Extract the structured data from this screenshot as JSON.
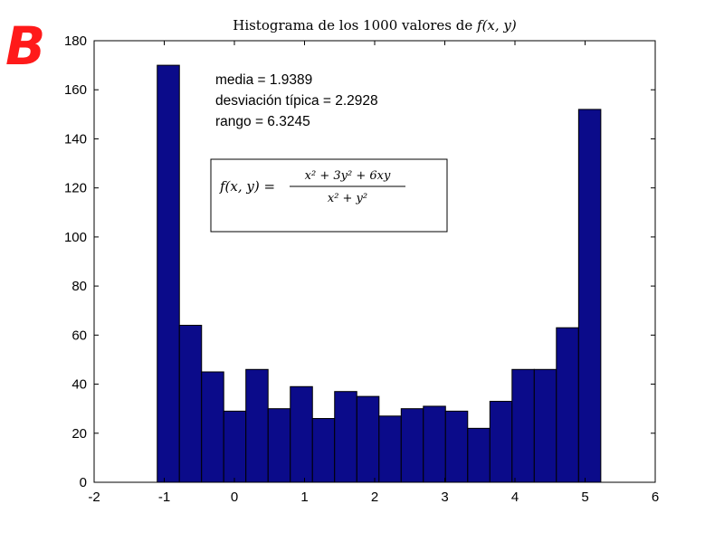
{
  "panel_label": "B",
  "stats": {
    "line1": "media = 1.9389",
    "line2": "desviación  típica = 2.2928",
    "line3": "rango = 6.3245"
  },
  "formula": {
    "lhs": "f(x, y) =",
    "numerator": "x² + 3y² + 6xy",
    "denominator": "x² + y²"
  },
  "colors": {
    "bar_fill": "#0b0b8a",
    "panel_label": "#ff1a1a"
  },
  "chart_data": {
    "type": "bar",
    "title": "Histograma de los 1000 valores de f(x, y)",
    "title_prefix": "Histograma de los 1000 valores de ",
    "title_math": "f(x, y)",
    "xlabel": "",
    "ylabel": "",
    "xlim": [
      -2,
      6
    ],
    "ylim": [
      0,
      180
    ],
    "xticks": [
      -2,
      -1,
      0,
      1,
      2,
      3,
      4,
      5,
      6
    ],
    "yticks": [
      0,
      20,
      40,
      60,
      80,
      100,
      120,
      140,
      160,
      180
    ],
    "grid": false,
    "bin_range": [
      -1.1,
      5.2245
    ],
    "bin_width": 0.3162,
    "bin_centers": [
      -0.942,
      -0.626,
      -0.31,
      0.006,
      0.322,
      0.639,
      0.955,
      1.271,
      1.587,
      1.904,
      2.22,
      2.536,
      2.852,
      3.168,
      3.485,
      3.801,
      4.117,
      4.433,
      4.749,
      5.066
    ],
    "values": [
      170,
      64,
      45,
      29,
      46,
      30,
      39,
      26,
      37,
      35,
      27,
      30,
      31,
      29,
      22,
      33,
      46,
      46,
      63,
      152
    ]
  }
}
